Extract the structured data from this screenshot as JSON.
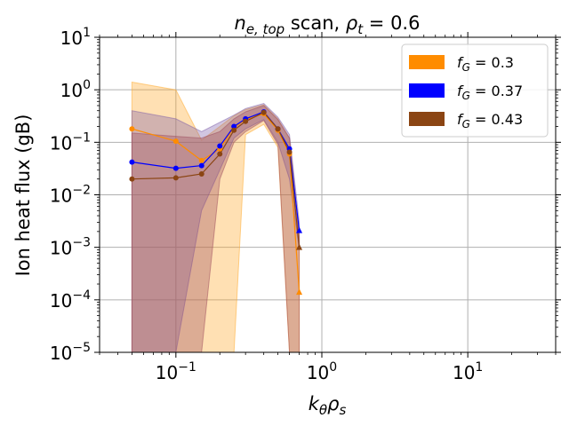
{
  "chart_data": {
    "type": "line",
    "title_parts": {
      "n": "n",
      "sub": "e, top",
      "mid": " scan, ",
      "rho": "ρ",
      "rho_sub": "t",
      "eq": " = 0.6"
    },
    "xlabel_parts": {
      "k": "k",
      "k_sub": "θ",
      "rho": "ρ",
      "rho_sub": "s"
    },
    "ylabel": "Ion heat flux (gB)",
    "xscale": "log",
    "yscale": "log",
    "xlim": [
      0.03,
      40
    ],
    "ylim": [
      1e-05,
      10
    ],
    "grid": true,
    "legend_position": "top-right",
    "x_ticks": [
      {
        "value": 0.1,
        "base": "10",
        "exp": "−1"
      },
      {
        "value": 1,
        "base": "10",
        "exp": "0"
      },
      {
        "value": 10,
        "base": "10",
        "exp": "1"
      }
    ],
    "y_ticks": [
      {
        "value": 1e-05,
        "base": "10",
        "exp": "−5"
      },
      {
        "value": 0.0001,
        "base": "10",
        "exp": "−4"
      },
      {
        "value": 0.001,
        "base": "10",
        "exp": "−3"
      },
      {
        "value": 0.01,
        "base": "10",
        "exp": "−2"
      },
      {
        "value": 0.1,
        "base": "10",
        "exp": "−1"
      },
      {
        "value": 1,
        "base": "10",
        "exp": "0"
      },
      {
        "value": 10,
        "base": "10",
        "exp": "1"
      }
    ],
    "series": [
      {
        "name": "f_G = 0.3",
        "legend_main": "f",
        "legend_sub": "G",
        "legend_value": " = 0.3",
        "color": "#ff8c00",
        "band_color": "#ffa726",
        "band_opacity": 0.35,
        "x": [
          0.05,
          0.1,
          0.15,
          0.2,
          0.25,
          0.3,
          0.4,
          0.5,
          0.6,
          0.7
        ],
        "y": [
          0.18,
          0.105,
          0.045,
          0.075,
          0.19,
          0.27,
          0.35,
          0.17,
          0.06,
          0.00014
        ],
        "lower": [
          1e-05,
          1e-05,
          1e-05,
          1e-05,
          1e-05,
          0.14,
          0.22,
          0.08,
          1e-05,
          1e-05
        ],
        "upper": [
          1.4,
          1.0,
          0.11,
          0.2,
          0.32,
          0.42,
          0.52,
          0.28,
          0.12,
          0.0016
        ],
        "last_marker": "triangle"
      },
      {
        "name": "f_G = 0.37",
        "legend_main": "f",
        "legend_sub": "G",
        "legend_value": " = 0.37",
        "color": "#0000ff",
        "band_color": "#7b5ca8",
        "band_opacity": 0.35,
        "x": [
          0.05,
          0.1,
          0.15,
          0.2,
          0.25,
          0.3,
          0.4,
          0.5,
          0.6,
          0.7
        ],
        "y": [
          0.042,
          0.032,
          0.036,
          0.085,
          0.2,
          0.28,
          0.38,
          0.18,
          0.075,
          0.0021
        ],
        "lower": [
          1e-05,
          1e-05,
          0.005,
          0.03,
          0.12,
          0.18,
          0.27,
          0.1,
          0.02,
          0.0009
        ],
        "upper": [
          0.4,
          0.28,
          0.16,
          0.24,
          0.33,
          0.44,
          0.55,
          0.3,
          0.14,
          0.003
        ],
        "last_marker": "triangle"
      },
      {
        "name": "f_G = 0.43",
        "legend_main": "f",
        "legend_sub": "G",
        "legend_value": " = 0.43",
        "color": "#8b4513",
        "band_color": "#9c4a5c",
        "band_opacity": 0.35,
        "x": [
          0.05,
          0.1,
          0.15,
          0.2,
          0.25,
          0.3,
          0.4,
          0.5,
          0.6,
          0.7
        ],
        "y": [
          0.02,
          0.021,
          0.025,
          0.06,
          0.17,
          0.25,
          0.37,
          0.18,
          0.065,
          0.001
        ],
        "lower": [
          1e-05,
          1e-05,
          1e-05,
          0.02,
          0.1,
          0.16,
          0.26,
          0.09,
          1e-05,
          1e-05
        ],
        "upper": [
          0.15,
          0.13,
          0.12,
          0.16,
          0.28,
          0.38,
          0.5,
          0.27,
          0.12,
          0.0016
        ],
        "last_marker": "triangle"
      }
    ]
  }
}
